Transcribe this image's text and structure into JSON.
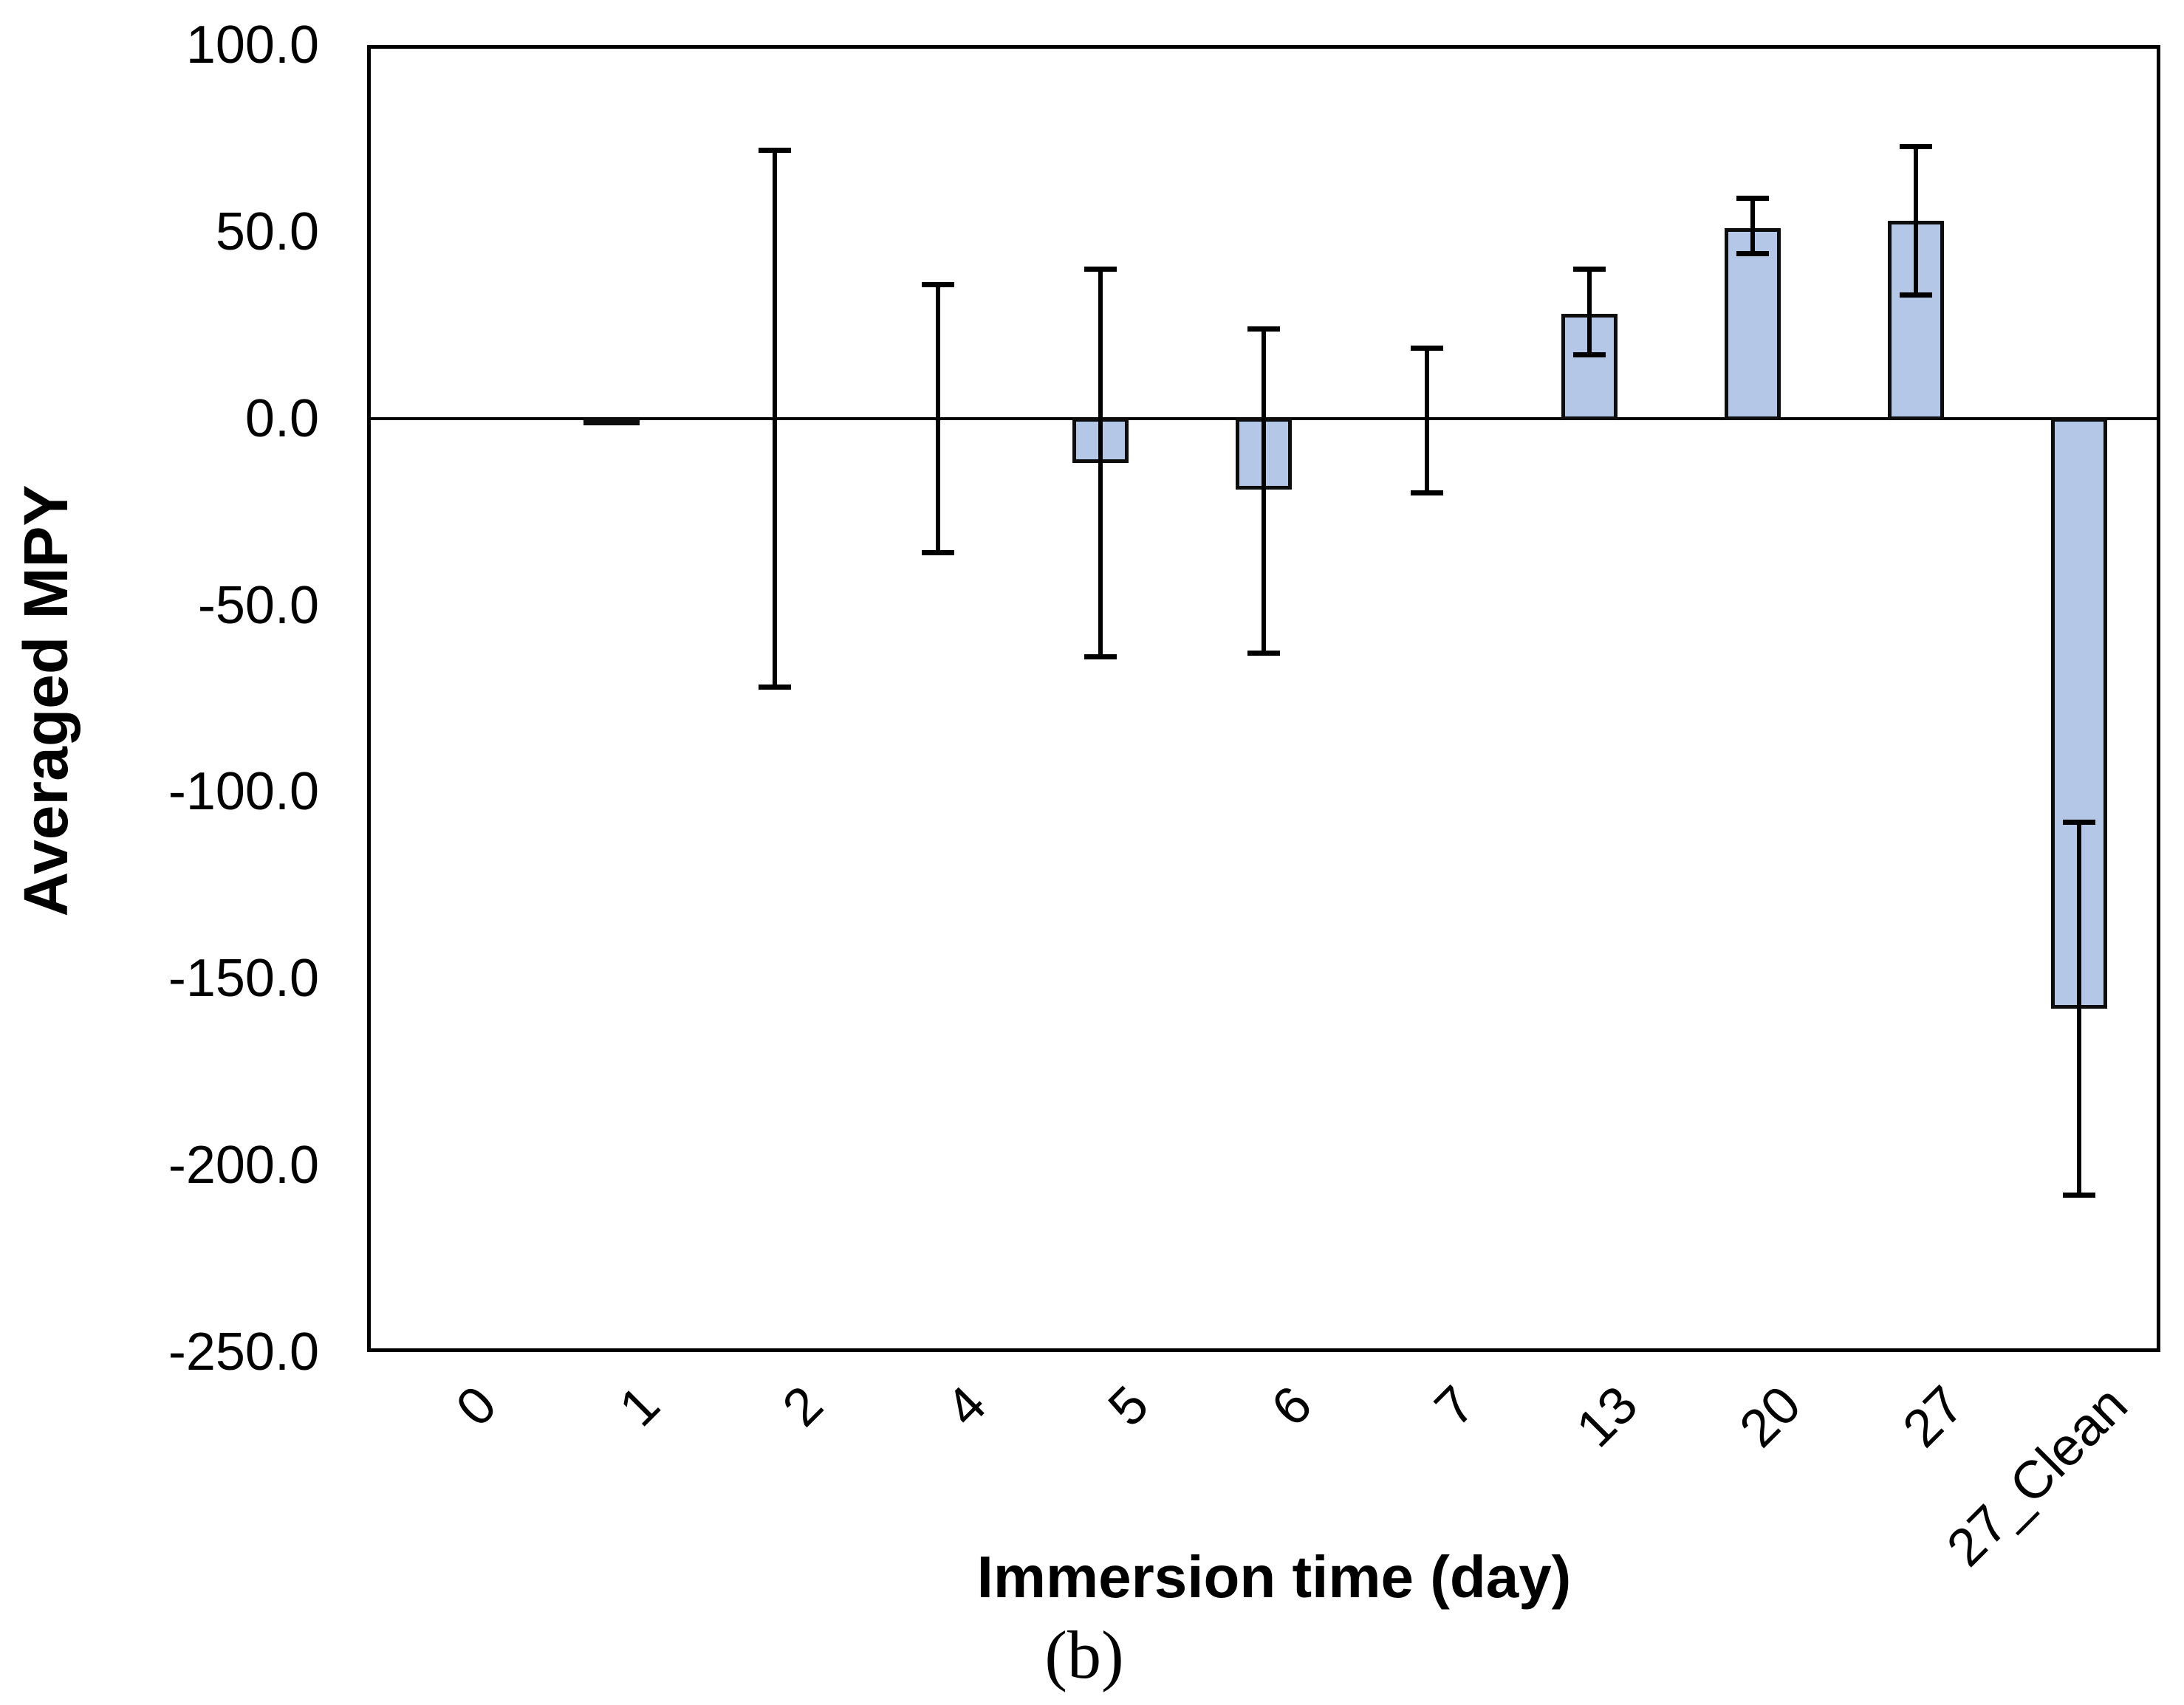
{
  "chart_data": {
    "type": "bar",
    "title": "",
    "xlabel": "Immersion time (day)",
    "ylabel": "Averaged MPY",
    "caption": "(b)",
    "categories": [
      "0",
      "1",
      "2",
      "4",
      "5",
      "6",
      "7",
      "13",
      "20",
      "27",
      "27_Clean"
    ],
    "values": [
      0.0,
      -1.0,
      0.0,
      0.0,
      -12.0,
      -19.0,
      0.0,
      28.0,
      51.0,
      53.0,
      -158.0
    ],
    "error_bars": {
      "top": [
        null,
        null,
        72.0,
        36.0,
        40.0,
        24.0,
        19.0,
        40.0,
        59.0,
        73.0,
        -108.0
      ],
      "bottom": [
        null,
        null,
        -72.0,
        -36.0,
        -64.0,
        -63.0,
        -20.0,
        17.0,
        44.0,
        33.0,
        -208.0
      ]
    },
    "ylim": [
      -250.0,
      100.0
    ],
    "yticks": [
      100,
      50,
      0,
      -50,
      -100,
      -150,
      -200,
      -250
    ],
    "ytick_labels": [
      "100.0",
      "50.0",
      "0.0",
      "-50.0",
      "-100.0",
      "-150.0",
      "-200.0",
      "-250.0"
    ],
    "grid": false,
    "legend_position": "none",
    "bar_color": "#b4c7e7",
    "bar_border_color": "#0d0d0d",
    "axis_color": "#000000"
  }
}
